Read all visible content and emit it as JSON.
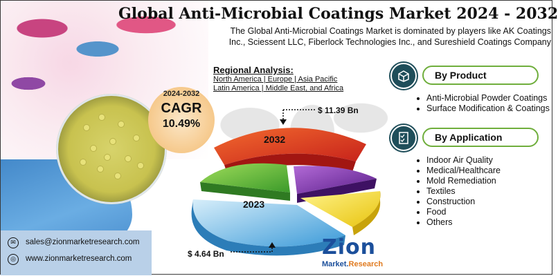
{
  "title": "Global Anti-Microbial Coatings Market 2024 - 2032",
  "subtitle_line1": "The Global Anti-Microbial Coatings Market is dominated by players like AK Coatings",
  "subtitle_line2": "Inc., Sciessent LLC, Fiberlock Technologies Inc., and Sureshield Coatings Company",
  "cagr": {
    "years": "2024-2032",
    "label": "CAGR",
    "value": "10.49%",
    "color": "#f6c98c"
  },
  "regional": {
    "heading": "Regional Analysis:",
    "line1": "North America | Europe | Asia Pacific",
    "line2": "Latin America | Middle East, and Africa"
  },
  "chart": {
    "label_2032": "2032",
    "label_2023": "2023",
    "value_2032": "$ 11.39 Bn",
    "value_2023": "$ 4.64 Bn",
    "colors": [
      "#e53b2c",
      "#f3a21f",
      "#7b2fae",
      "#f4e11a",
      "#5ab0e2",
      "#55b83a"
    ]
  },
  "by_product": {
    "heading": "By Product",
    "icon": "box-icon",
    "items": [
      "Anti-Microbial Powder Coatings",
      "Surface Modification & Coatings"
    ]
  },
  "by_application": {
    "heading": "By Application",
    "icon": "checklist-icon",
    "items": [
      "Indoor Air Quality",
      "Medical/Healthcare",
      "Mold Remediation",
      "Textiles",
      "Construction",
      "Food",
      "Others"
    ]
  },
  "contact": {
    "email": "sales@zionmarketresearch.com",
    "website": "www.zionmarketresearch.com"
  },
  "logo": {
    "word": "Zion",
    "sub_a": "Market.",
    "sub_b": "Research",
    "color": "#1b4f9b",
    "accent": "#e07a1f"
  }
}
